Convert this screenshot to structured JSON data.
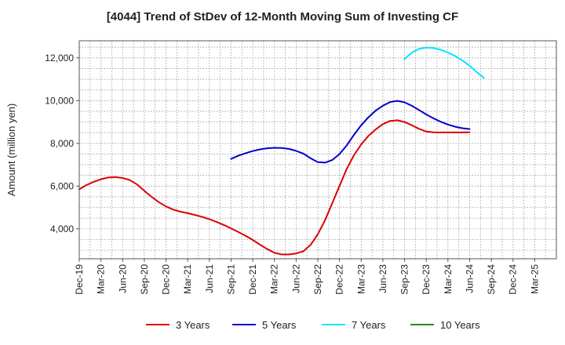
{
  "chart_data": {
    "type": "line",
    "title": "[4044]  Trend of StDev of 12-Month Moving Sum of Investing CF",
    "ylabel": "Amount (million yen)",
    "xlabel": "",
    "ylim": [
      2600,
      12800
    ],
    "yticks": [
      4000,
      6000,
      8000,
      10000,
      12000
    ],
    "ytick_labels": [
      "4,000",
      "6,000",
      "8,000",
      "10,000",
      "12,000"
    ],
    "x_categories": [
      "Dec-19",
      "Mar-20",
      "Jun-20",
      "Sep-20",
      "Dec-20",
      "Mar-21",
      "Jun-21",
      "Sep-21",
      "Dec-21",
      "Mar-22",
      "Jun-22",
      "Sep-22",
      "Dec-22",
      "Mar-23",
      "Jun-23",
      "Sep-23",
      "Dec-23",
      "Mar-24",
      "Jun-24",
      "Sep-24",
      "Dec-24",
      "Mar-25"
    ],
    "grid": true,
    "legend_position": "bottom",
    "series": [
      {
        "name": "3 Years",
        "color": "#dd0000",
        "start_index": 0,
        "values": [
          5850,
          6050,
          6200,
          6320,
          6400,
          6420,
          6380,
          6280,
          6080,
          5780,
          5500,
          5250,
          5050,
          4900,
          4800,
          4730,
          4650,
          4560,
          4450,
          4320,
          4180,
          4020,
          3850,
          3680,
          3480,
          3260,
          3050,
          2880,
          2800,
          2800,
          2850,
          2950,
          3250,
          3750,
          4400,
          5200,
          6000,
          6800,
          7450,
          7950,
          8350,
          8650,
          8900,
          9050,
          9080,
          9000,
          8850,
          8680,
          8550,
          8520,
          8510,
          8510,
          8510,
          8510,
          8520
        ]
      },
      {
        "name": "5 Years",
        "color": "#0000cc",
        "start_index": 21,
        "values": [
          7270,
          7420,
          7540,
          7640,
          7720,
          7770,
          7790,
          7780,
          7740,
          7650,
          7520,
          7300,
          7120,
          7100,
          7220,
          7500,
          7900,
          8400,
          8850,
          9220,
          9530,
          9760,
          9930,
          9990,
          9920,
          9760,
          9560,
          9350,
          9170,
          9010,
          8880,
          8780,
          8710,
          8670
        ]
      },
      {
        "name": "7 Years",
        "color": "#00e5ff",
        "start_index": 45,
        "values": [
          11940,
          12250,
          12420,
          12480,
          12460,
          12380,
          12250,
          12090,
          11880,
          11630,
          11330,
          11060
        ]
      },
      {
        "name": "10 Years",
        "color": "#228b22",
        "start_index": 0,
        "values": []
      }
    ]
  }
}
